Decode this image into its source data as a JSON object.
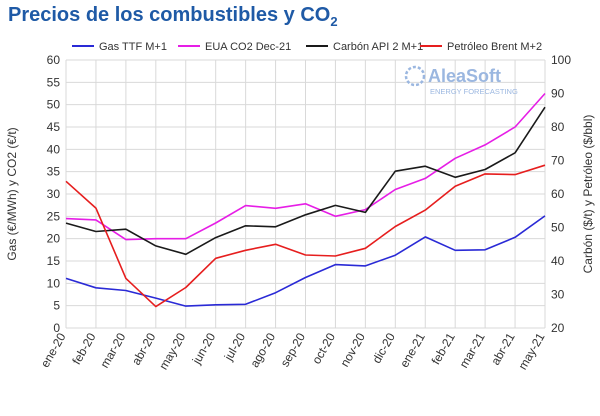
{
  "chart_data": {
    "type": "line",
    "title": "Precios de los combustibles y CO",
    "title_subscript": "2",
    "logo": {
      "name": "AleaSoft",
      "tagline": "ENERGY FORECASTING",
      "color": "#9bb7e0"
    },
    "categories": [
      "ene-20",
      "feb-20",
      "mar-20",
      "abr-20",
      "may-20",
      "jun-20",
      "jul-20",
      "ago-20",
      "sep-20",
      "oct-20",
      "nov-20",
      "dic-20",
      "ene-21",
      "feb-21",
      "mar-21",
      "abr-21",
      "may-21"
    ],
    "y_left": {
      "label": "Gas (€/MWh) y CO2 (€/t)",
      "min": 0,
      "max": 60,
      "step": 5
    },
    "y_right": {
      "label": "Carbón ($/t) y Petróleo ($/bbl)",
      "min": 20,
      "max": 100,
      "step": 10
    },
    "grid": true,
    "legend_position": "top",
    "series": [
      {
        "name": "Gas TTF M+1",
        "color": "#2a2ad6",
        "axis": "left",
        "values": [
          11.1,
          9.0,
          8.4,
          6.7,
          4.9,
          5.2,
          5.3,
          7.9,
          11.3,
          14.2,
          13.9,
          16.3,
          20.4,
          17.4,
          17.5,
          20.3,
          25.1
        ]
      },
      {
        "name": "EUA CO2 Dec-21",
        "color": "#e61ee6",
        "axis": "left",
        "values": [
          24.5,
          24.2,
          19.8,
          20.0,
          20.0,
          23.5,
          27.4,
          26.8,
          27.8,
          25.0,
          26.5,
          31.0,
          33.5,
          38.0,
          41.0,
          45.0,
          52.5
        ]
      },
      {
        "name": "Carbón API 2 M+1",
        "color": "#1a1a1a",
        "axis": "right",
        "values": [
          51.3,
          48.8,
          49.5,
          44.5,
          42.0,
          47.0,
          50.5,
          50.2,
          53.8,
          56.6,
          54.5,
          66.8,
          68.3,
          65.0,
          67.3,
          72.3,
          85.9
        ]
      },
      {
        "name": "Petróleo Brent M+2",
        "color": "#e61e1e",
        "axis": "right",
        "values": [
          63.8,
          55.8,
          34.8,
          26.4,
          32.1,
          40.8,
          43.2,
          45.0,
          41.8,
          41.5,
          43.8,
          50.3,
          55.2,
          62.3,
          66.0,
          65.8,
          68.6
        ]
      }
    ]
  }
}
